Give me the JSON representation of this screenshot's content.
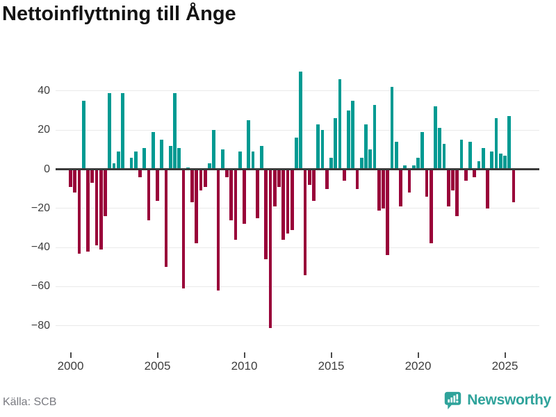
{
  "title": "Nettoinflyttning till Ånge",
  "source": "Källa: SCB",
  "branding": {
    "name": "Newsworthy"
  },
  "colors": {
    "positive": "#009a92",
    "negative": "#990239",
    "grid": "#e9e9e9",
    "zero_line": "#3a3a3a",
    "axis_text": "#3d3d3d",
    "title_text": "#141414",
    "source_text": "#797a80",
    "brand": "#2fa39b"
  },
  "chart_data": {
    "type": "bar",
    "title": "Nettoinflyttning till Ånge",
    "xlabel": "",
    "ylabel": "",
    "x_unit": "quarter",
    "x_start": "2000 Q1",
    "x_end": "2025 Q3",
    "x_tick_labels": [
      "2000",
      "2005",
      "2010",
      "2015",
      "2020",
      "2025"
    ],
    "y_ticks": [
      40,
      20,
      0,
      -20,
      -40,
      -60,
      -80
    ],
    "ylim": [
      -88,
      55
    ],
    "grid": true,
    "legend": false,
    "series": [
      {
        "name": "Nettoinflyttning",
        "values": [
          -9,
          -12,
          -43,
          35,
          -42,
          -7,
          -39,
          -41,
          -24,
          39,
          3,
          9,
          39,
          0,
          6,
          9,
          -4,
          11,
          -26,
          19,
          -16,
          15,
          -50,
          12,
          39,
          11,
          -61,
          1,
          -17,
          -38,
          -11,
          -9,
          3,
          20,
          -62,
          10,
          -4,
          -26,
          -36,
          9,
          -28,
          25,
          9,
          -25,
          12,
          -46,
          -81,
          -19,
          -9,
          -36,
          -33,
          -31,
          16,
          50,
          -54,
          -8,
          -16,
          23,
          20,
          -10,
          6,
          26,
          46,
          -6,
          30,
          35,
          -10,
          6,
          23,
          10,
          33,
          -21,
          -20,
          -44,
          42,
          14,
          -19,
          2,
          -12,
          2,
          6,
          19,
          -14,
          -38,
          32,
          21,
          13,
          -19,
          -11,
          -24,
          15,
          -6,
          14,
          -4,
          4,
          11,
          -20,
          9,
          26,
          8,
          7,
          27,
          -17
        ]
      }
    ]
  }
}
